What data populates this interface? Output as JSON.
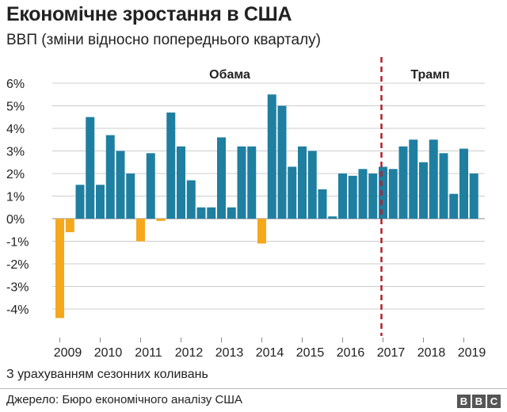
{
  "header": {
    "title": "Економічне зростання в США",
    "subtitle": "ВВП (зміни відносно попереднього кварталу)"
  },
  "footer": {
    "note": "З урахуванням сезонних коливань",
    "source": "Джерело: Бюро економічного аналізу США",
    "logo_letters": [
      "B",
      "B",
      "C"
    ]
  },
  "colors": {
    "positive": "#1f7fa1",
    "negative": "#f5a81c",
    "divider_line": "#b3202a",
    "grid": "#cccccc"
  },
  "chart_data": {
    "type": "bar",
    "title": "Економічне зростання в США",
    "subtitle": "ВВП (зміни відносно попереднього кварталу)",
    "ylim": [
      -5,
      6
    ],
    "ytick_values": [
      6,
      5,
      4,
      3,
      2,
      1,
      0,
      -1,
      -2,
      -3,
      -4
    ],
    "ytick_labels": [
      "6%",
      "5%",
      "4%",
      "3%",
      "2%",
      "1%",
      "0%",
      "-1%",
      "-2%",
      "-3%",
      "-4%"
    ],
    "xtick_labels": [
      "2009",
      "2010",
      "2011",
      "2012",
      "2013",
      "2014",
      "2015",
      "2016",
      "2017",
      "2018",
      "2019"
    ],
    "grid": true,
    "annotations": [
      {
        "label": "Обама",
        "period": "2009 Q1 – 2016 Q4"
      },
      {
        "label": "Трамп",
        "period": "2017 Q1 – 2019 Q2"
      }
    ],
    "divider_at": "2017 Q1",
    "quarters_per_year": 4,
    "start_year": 2009,
    "values": [
      -4.4,
      -0.6,
      1.5,
      4.5,
      1.5,
      3.7,
      3.0,
      2.0,
      -1.0,
      2.9,
      -0.1,
      4.7,
      3.2,
      1.7,
      0.5,
      0.5,
      3.6,
      0.5,
      3.2,
      3.2,
      -1.1,
      5.5,
      5.0,
      2.3,
      3.2,
      3.0,
      1.3,
      0.1,
      2.0,
      1.9,
      2.2,
      2.0,
      2.3,
      2.2,
      3.2,
      3.5,
      2.5,
      3.5,
      2.9,
      1.1,
      3.1,
      2.0
    ]
  }
}
